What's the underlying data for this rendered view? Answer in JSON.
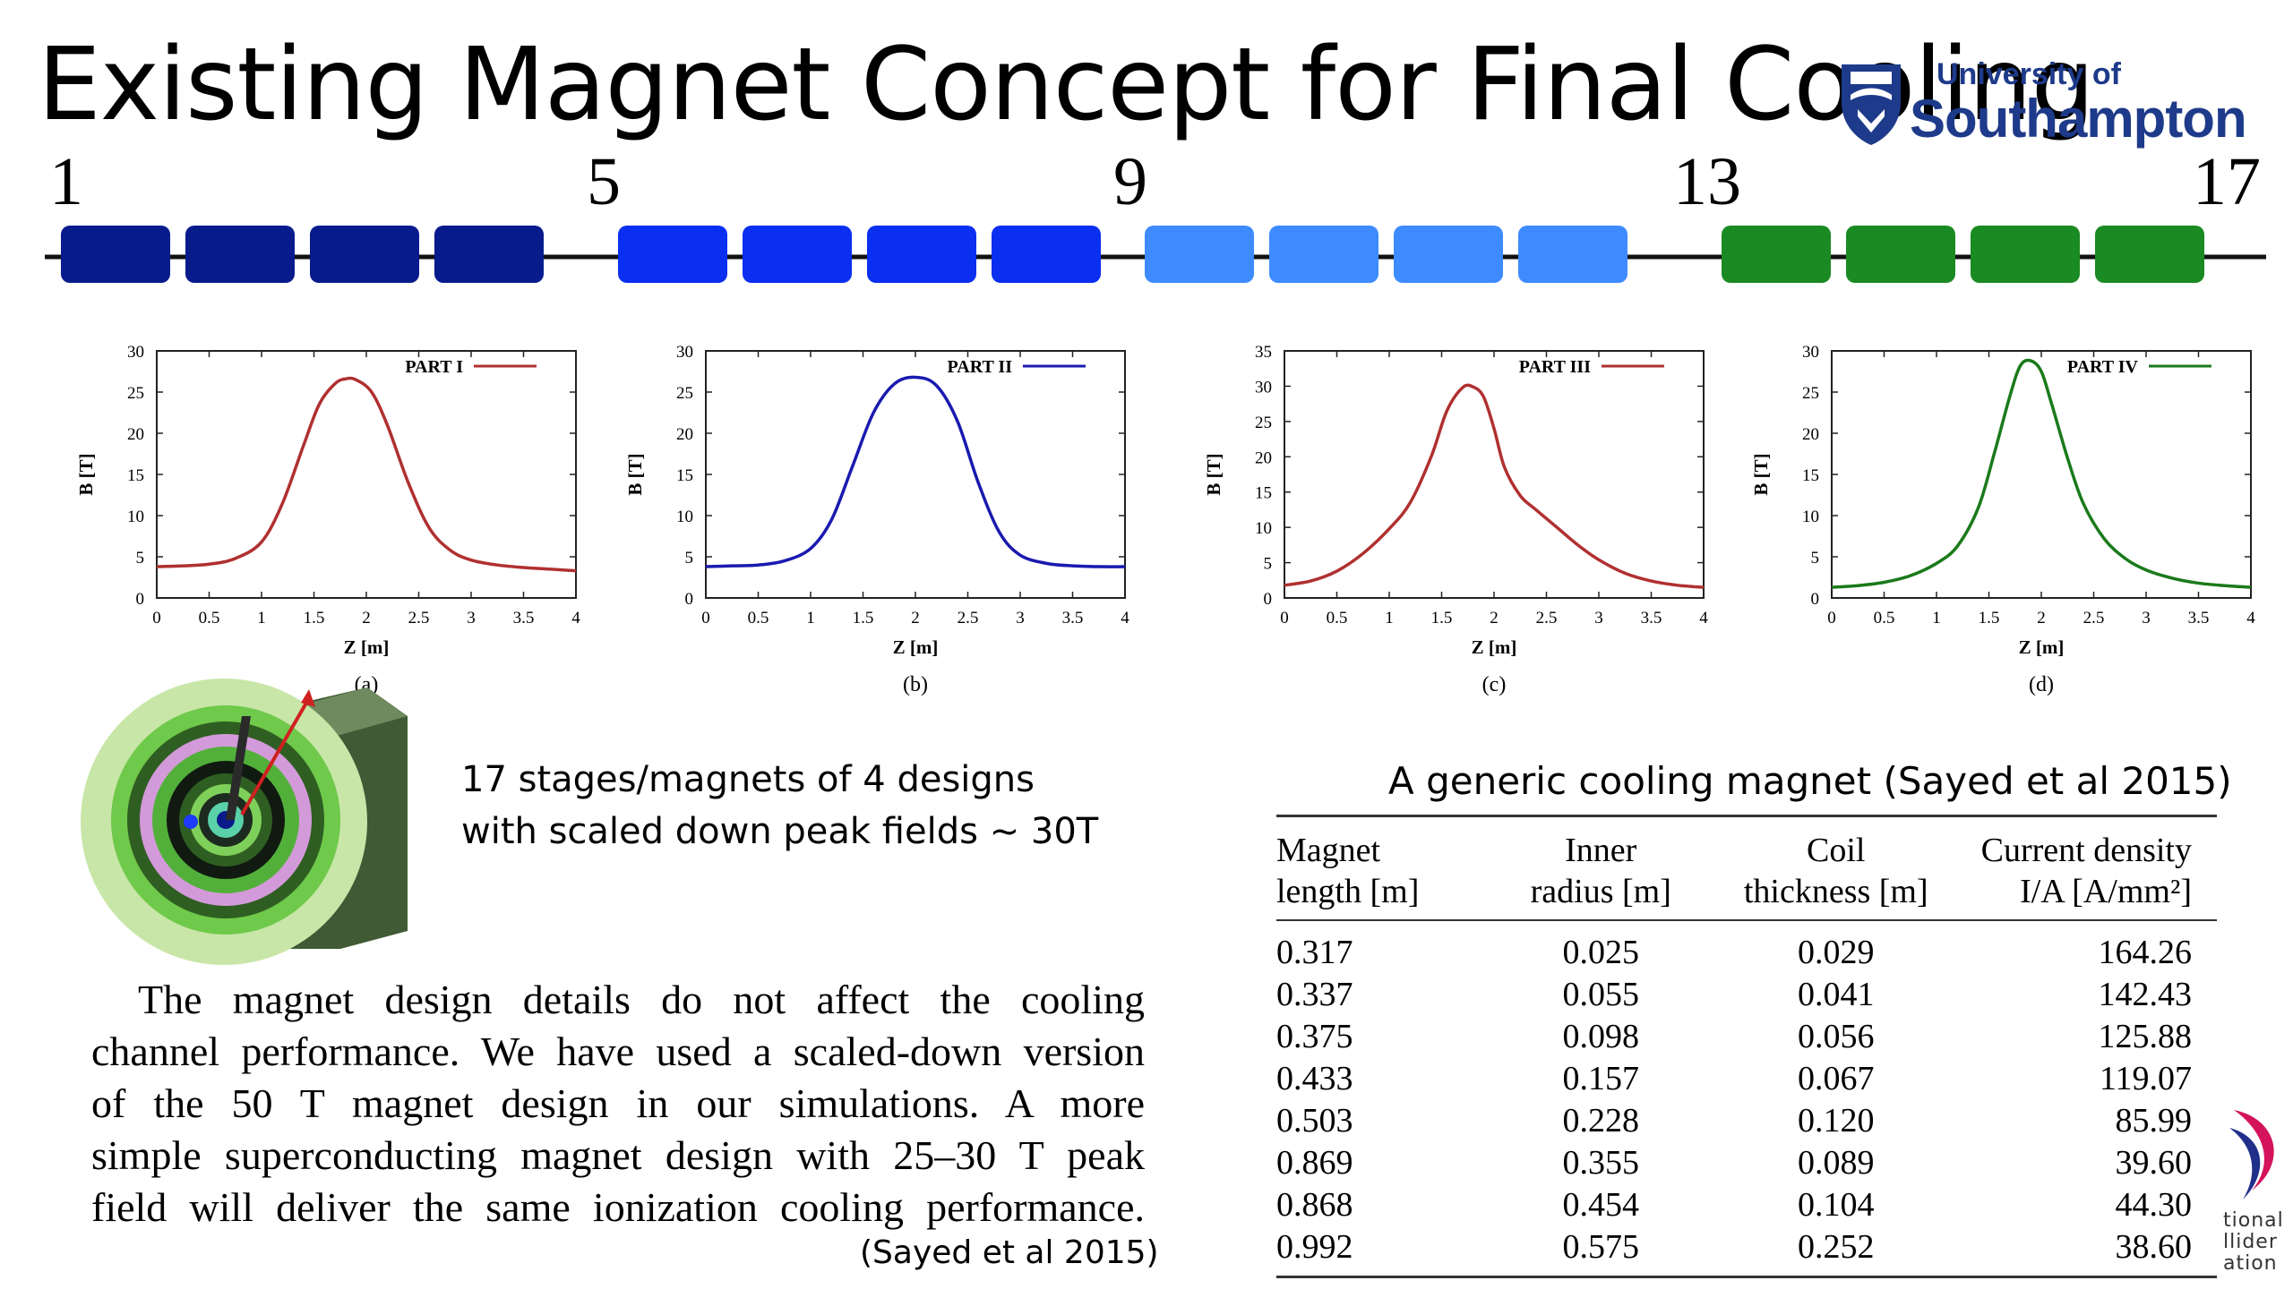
{
  "title": "Existing Magnet Concept for Final Cooling",
  "logo": {
    "small": "University of",
    "big": "Southampton"
  },
  "stages": {
    "numbers": [
      "1",
      "5",
      "9",
      "13",
      "17"
    ],
    "colors": [
      "#071b8c",
      "#0a2ff0",
      "#3d8bff",
      "#1a8a22"
    ]
  },
  "chart_data": [
    {
      "type": "line",
      "label": "(a)",
      "legend": "PART I",
      "color": "#b03030",
      "xlabel": "Z [m]",
      "ylabel": "B [T]",
      "xlim": [
        0,
        4
      ],
      "ylim": [
        0,
        30
      ],
      "xticks": [
        "0",
        "0.5",
        "1",
        "1.5",
        "2",
        "2.5",
        "3",
        "3.5",
        "4"
      ],
      "yticks": [
        "0",
        "5",
        "10",
        "15",
        "20",
        "25",
        "30"
      ],
      "x": [
        0,
        0.25,
        0.5,
        0.75,
        1.0,
        1.2,
        1.4,
        1.55,
        1.7,
        1.8,
        1.9,
        2.05,
        2.2,
        2.4,
        2.6,
        2.8,
        3.0,
        3.25,
        3.5,
        3.75,
        4.0
      ],
      "y": [
        3.8,
        3.9,
        4.1,
        4.8,
        6.8,
        11.5,
        18.5,
        23.5,
        26.0,
        26.6,
        26.5,
        25.0,
        21.0,
        14.0,
        8.5,
        5.8,
        4.6,
        4.0,
        3.7,
        3.5,
        3.3
      ]
    },
    {
      "type": "line",
      "label": "(b)",
      "legend": "PART II",
      "color": "#1a1ab0",
      "xlabel": "Z [m]",
      "ylabel": "B [T]",
      "xlim": [
        0,
        4
      ],
      "ylim": [
        0,
        30
      ],
      "xticks": [
        "0",
        "0.5",
        "1",
        "1.5",
        "2",
        "2.5",
        "3",
        "3.5",
        "4"
      ],
      "yticks": [
        "0",
        "5",
        "10",
        "15",
        "20",
        "25",
        "30"
      ],
      "x": [
        0,
        0.25,
        0.5,
        0.75,
        1.0,
        1.2,
        1.4,
        1.6,
        1.8,
        2.0,
        2.2,
        2.4,
        2.6,
        2.8,
        3.0,
        3.25,
        3.5,
        3.75,
        4.0
      ],
      "y": [
        3.8,
        3.9,
        4.0,
        4.5,
        6.0,
        9.5,
        16.0,
        22.5,
        26.0,
        26.8,
        25.8,
        21.5,
        14.0,
        8.0,
        5.2,
        4.2,
        3.9,
        3.8,
        3.8
      ]
    },
    {
      "type": "line",
      "label": "(c)",
      "legend": "PART III",
      "color": "#b03030",
      "xlabel": "Z [m]",
      "ylabel": "B [T]",
      "xlim": [
        0,
        4
      ],
      "ylim": [
        0,
        35
      ],
      "xticks": [
        "0",
        "0.5",
        "1",
        "1.5",
        "2",
        "2.5",
        "3",
        "3.5",
        "4"
      ],
      "yticks": [
        "0",
        "5",
        "10",
        "15",
        "20",
        "25",
        "30",
        "35"
      ],
      "x": [
        0,
        0.25,
        0.5,
        0.75,
        1.0,
        1.2,
        1.4,
        1.55,
        1.7,
        1.8,
        1.9,
        2.0,
        2.1,
        2.25,
        2.4,
        2.6,
        2.8,
        3.0,
        3.25,
        3.5,
        3.75,
        4.0
      ],
      "y": [
        1.8,
        2.4,
        3.8,
        6.3,
        9.8,
        13.5,
        20.0,
        26.5,
        29.8,
        29.9,
        28.5,
        24.0,
        18.5,
        14.5,
        12.5,
        10.0,
        7.5,
        5.4,
        3.5,
        2.4,
        1.8,
        1.5
      ]
    },
    {
      "type": "line",
      "label": "(d)",
      "legend": "PART IV",
      "color": "#1a7a1a",
      "xlabel": "Z [m]",
      "ylabel": "B [T]",
      "xlim": [
        0,
        4
      ],
      "ylim": [
        0,
        30
      ],
      "xticks": [
        "0",
        "0.5",
        "1",
        "1.5",
        "2",
        "2.5",
        "3",
        "3.5",
        "4"
      ],
      "yticks": [
        "0",
        "5",
        "10",
        "15",
        "20",
        "25",
        "30"
      ],
      "x": [
        0,
        0.25,
        0.5,
        0.75,
        1.0,
        1.2,
        1.4,
        1.55,
        1.7,
        1.8,
        1.9,
        2.0,
        2.1,
        2.25,
        2.4,
        2.6,
        2.8,
        3.0,
        3.25,
        3.5,
        3.75,
        4.0
      ],
      "y": [
        1.3,
        1.5,
        1.9,
        2.7,
        4.2,
        6.3,
        11.0,
        17.5,
        24.5,
        28.2,
        28.8,
        27.5,
        23.5,
        17.0,
        11.5,
        7.2,
        4.8,
        3.4,
        2.4,
        1.8,
        1.5,
        1.3
      ]
    }
  ],
  "description": {
    "line1": "17 stages/magnets of 4 designs",
    "line2": "with scaled down peak fields ~ 30T"
  },
  "paragraph": {
    "lines": [
      "The magnet design details do not affect the cooling",
      "channel performance. We have used a scaled-down version",
      "of the 50 T magnet design in our simulations. A more",
      "simple superconducting magnet design with 25–30 T peak",
      "field will deliver the same ionization cooling performance."
    ],
    "citation": "(Sayed et al  2015)"
  },
  "table": {
    "caption": "A generic cooling magnet (Sayed et al 2015)",
    "headers": [
      [
        "Magnet",
        "length [m]"
      ],
      [
        "Inner",
        "radius [m]"
      ],
      [
        "Coil",
        "thickness [m]"
      ],
      [
        "Current density",
        "I/A [A/mm²]"
      ]
    ],
    "rows": [
      [
        "0.317",
        "0.025",
        "0.029",
        "164.26"
      ],
      [
        "0.337",
        "0.055",
        "0.041",
        "142.43"
      ],
      [
        "0.375",
        "0.098",
        "0.056",
        "125.88"
      ],
      [
        "0.433",
        "0.157",
        "0.067",
        "119.07"
      ],
      [
        "0.503",
        "0.228",
        "0.120",
        "85.99"
      ],
      [
        "0.869",
        "0.355",
        "0.089",
        "39.60"
      ],
      [
        "0.868",
        "0.454",
        "0.104",
        "44.30"
      ],
      [
        "0.992",
        "0.575",
        "0.252",
        "38.60"
      ]
    ]
  },
  "corner_logo": {
    "lines": [
      "tional",
      "llider",
      "ation"
    ]
  }
}
